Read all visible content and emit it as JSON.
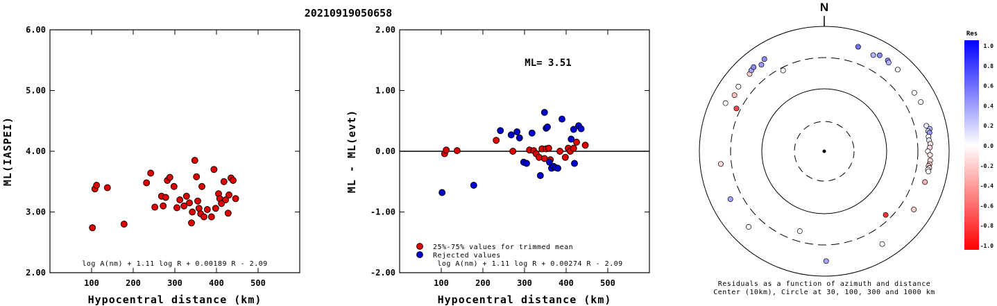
{
  "event_id": "20210919050658",
  "chart_data": [
    {
      "type": "scatter",
      "title": "",
      "xlabel": "Hypocentral distance (km)",
      "ylabel": "ML(IASPEI)",
      "xlim": [
        0,
        600
      ],
      "ylim": [
        2.0,
        6.0
      ],
      "x_ticks": [
        "100",
        "200",
        "300",
        "400",
        "500"
      ],
      "y_ticks": [
        "2.00",
        "3.00",
        "4.00",
        "5.00",
        "6.00"
      ],
      "formula": "log A(nm) + 1.11 log R + 0.00189 R - 2.09",
      "marker_color": "#dd0000",
      "points": [
        {
          "x": 102,
          "y": 2.74
        },
        {
          "x": 108,
          "y": 3.38
        },
        {
          "x": 112,
          "y": 3.44
        },
        {
          "x": 138,
          "y": 3.4
        },
        {
          "x": 178,
          "y": 2.8
        },
        {
          "x": 232,
          "y": 3.48
        },
        {
          "x": 242,
          "y": 3.64
        },
        {
          "x": 252,
          "y": 3.08
        },
        {
          "x": 268,
          "y": 3.26
        },
        {
          "x": 272,
          "y": 3.1
        },
        {
          "x": 278,
          "y": 3.24
        },
        {
          "x": 282,
          "y": 3.52
        },
        {
          "x": 288,
          "y": 3.57
        },
        {
          "x": 298,
          "y": 3.42
        },
        {
          "x": 305,
          "y": 3.07
        },
        {
          "x": 312,
          "y": 3.2
        },
        {
          "x": 322,
          "y": 3.1
        },
        {
          "x": 328,
          "y": 3.26
        },
        {
          "x": 335,
          "y": 3.15
        },
        {
          "x": 340,
          "y": 2.82
        },
        {
          "x": 342,
          "y": 3.0
        },
        {
          "x": 348,
          "y": 3.85
        },
        {
          "x": 352,
          "y": 3.58
        },
        {
          "x": 355,
          "y": 3.18
        },
        {
          "x": 358,
          "y": 3.06
        },
        {
          "x": 362,
          "y": 2.97
        },
        {
          "x": 365,
          "y": 3.42
        },
        {
          "x": 370,
          "y": 2.92
        },
        {
          "x": 378,
          "y": 3.04
        },
        {
          "x": 388,
          "y": 2.92
        },
        {
          "x": 394,
          "y": 3.7
        },
        {
          "x": 398,
          "y": 3.06
        },
        {
          "x": 405,
          "y": 3.3
        },
        {
          "x": 408,
          "y": 3.22
        },
        {
          "x": 412,
          "y": 3.14
        },
        {
          "x": 418,
          "y": 3.5
        },
        {
          "x": 422,
          "y": 3.2
        },
        {
          "x": 428,
          "y": 2.98
        },
        {
          "x": 430,
          "y": 3.28
        },
        {
          "x": 435,
          "y": 3.56
        },
        {
          "x": 440,
          "y": 3.52
        },
        {
          "x": 446,
          "y": 3.22
        }
      ]
    },
    {
      "type": "scatter",
      "title": "",
      "xlabel": "Hypocentral distance (km)",
      "ylabel": "ML - ML(evt)",
      "xlim": [
        0,
        600
      ],
      "ylim": [
        -2.0,
        2.0
      ],
      "x_ticks": [
        "100",
        "200",
        "300",
        "400",
        "500"
      ],
      "y_ticks": [
        "-2.00",
        "-1.00",
        "0.00",
        "1.00",
        "2.00"
      ],
      "annotation": "ML= 3.51",
      "formula": "log A(nm) + 1.11 log R + 0.00274 R - 2.09",
      "legend": [
        {
          "label": "25%-75% values for trimmed mean",
          "color": "#dd0000"
        },
        {
          "label": "Rejected values",
          "color": "#0000cc"
        }
      ],
      "series": [
        {
          "color": "#dd0000",
          "points": [
            {
              "x": 108,
              "y": -0.04
            },
            {
              "x": 112,
              "y": 0.02
            },
            {
              "x": 138,
              "y": 0.01
            },
            {
              "x": 232,
              "y": 0.18
            },
            {
              "x": 272,
              "y": 0.0
            },
            {
              "x": 312,
              "y": 0.02
            },
            {
              "x": 322,
              "y": 0.01
            },
            {
              "x": 328,
              "y": -0.04
            },
            {
              "x": 335,
              "y": -0.1
            },
            {
              "x": 342,
              "y": 0.04
            },
            {
              "x": 348,
              "y": -0.12
            },
            {
              "x": 352,
              "y": 0.04
            },
            {
              "x": 358,
              "y": 0.05
            },
            {
              "x": 362,
              "y": -0.14
            },
            {
              "x": 385,
              "y": 0.0
            },
            {
              "x": 398,
              "y": -0.1
            },
            {
              "x": 405,
              "y": 0.05
            },
            {
              "x": 410,
              "y": 0.0
            },
            {
              "x": 418,
              "y": 0.05
            },
            {
              "x": 425,
              "y": 0.15
            },
            {
              "x": 446,
              "y": 0.1
            }
          ]
        },
        {
          "color": "#0000cc",
          "points": [
            {
              "x": 102,
              "y": -0.68
            },
            {
              "x": 178,
              "y": -0.56
            },
            {
              "x": 242,
              "y": 0.34
            },
            {
              "x": 268,
              "y": 0.27
            },
            {
              "x": 282,
              "y": 0.32
            },
            {
              "x": 288,
              "y": 0.22
            },
            {
              "x": 298,
              "y": -0.18
            },
            {
              "x": 305,
              "y": -0.2
            },
            {
              "x": 318,
              "y": 0.3
            },
            {
              "x": 338,
              "y": -0.4
            },
            {
              "x": 348,
              "y": 0.64
            },
            {
              "x": 352,
              "y": 0.38
            },
            {
              "x": 355,
              "y": 0.4
            },
            {
              "x": 360,
              "y": -0.18
            },
            {
              "x": 365,
              "y": -0.28
            },
            {
              "x": 370,
              "y": -0.25
            },
            {
              "x": 375,
              "y": -0.27
            },
            {
              "x": 380,
              "y": -0.28
            },
            {
              "x": 390,
              "y": 0.53
            },
            {
              "x": 412,
              "y": 0.2
            },
            {
              "x": 418,
              "y": 0.36
            },
            {
              "x": 430,
              "y": 0.42
            },
            {
              "x": 436,
              "y": 0.37
            },
            {
              "x": 420,
              "y": -0.2
            }
          ]
        }
      ]
    },
    {
      "type": "scatter",
      "subtype": "polar",
      "north_label": "N",
      "caption_line1": "Residuals as a function of azimuth and distance",
      "caption_line2": "Center (10km), Circle at 30, 100, 300 and 1000 km",
      "colorbar": {
        "title": "Res",
        "range": [
          -1.0,
          1.0
        ],
        "ticks": [
          "1.0",
          "0.8",
          "0.6",
          "0.4",
          "0.2",
          "0.0",
          "-0.2",
          "-0.4",
          "-0.6",
          "-0.8",
          "-1.0"
        ],
        "high_color": "#0000ff",
        "low_color": "#ff0000"
      },
      "rings_km": [
        30,
        100,
        300,
        1000
      ],
      "stations": [
        {
          "az": 18,
          "dist_km": 560,
          "res": 0.55
        },
        {
          "az": 27,
          "dist_km": 520,
          "res": 0.3
        },
        {
          "az": 30,
          "dist_km": 580,
          "res": 0.45
        },
        {
          "az": 35,
          "dist_km": 580,
          "res": 0.45
        },
        {
          "az": 36,
          "dist_km": 555,
          "res": 0.3
        },
        {
          "az": 42,
          "dist_km": 560,
          "res": 0.0
        },
        {
          "az": 57,
          "dist_km": 510,
          "res": 0.0
        },
        {
          "az": 63,
          "dist_km": 530,
          "res": 0.0
        },
        {
          "az": 76,
          "dist_km": 470,
          "res": 0.1
        },
        {
          "az": 78,
          "dist_km": 520,
          "res": 0.3
        },
        {
          "az": 79,
          "dist_km": 480,
          "res": 0.15
        },
        {
          "az": 80,
          "dist_km": 500,
          "res": 0.4
        },
        {
          "az": 82,
          "dist_km": 470,
          "res": 0.0
        },
        {
          "az": 84,
          "dist_km": 470,
          "res": 0.1
        },
        {
          "az": 86,
          "dist_km": 490,
          "res": -0.1
        },
        {
          "az": 88,
          "dist_km": 475,
          "res": -0.15
        },
        {
          "az": 90,
          "dist_km": 440,
          "res": 0.0
        },
        {
          "az": 92,
          "dist_km": 480,
          "res": -0.1
        },
        {
          "az": 95,
          "dist_km": 490,
          "res": -0.15
        },
        {
          "az": 97,
          "dist_km": 485,
          "res": -0.25
        },
        {
          "az": 98,
          "dist_km": 470,
          "res": -0.2
        },
        {
          "az": 99,
          "dist_km": 490,
          "res": -0.1
        },
        {
          "az": 100,
          "dist_km": 470,
          "res": 0.0
        },
        {
          "az": 101,
          "dist_km": 485,
          "res": 0.0
        },
        {
          "az": 107,
          "dist_km": 470,
          "res": -0.3
        },
        {
          "az": 123,
          "dist_km": 500,
          "res": -0.2
        },
        {
          "az": 136,
          "dist_km": 250,
          "res": -0.8
        },
        {
          "az": 148,
          "dist_km": 550,
          "res": 0.0
        },
        {
          "az": 179,
          "dist_km": 560,
          "res": 0.35
        },
        {
          "az": 197,
          "dist_km": 210,
          "res": 0.0
        },
        {
          "az": 225,
          "dist_km": 500,
          "res": 0.0
        },
        {
          "az": 243,
          "dist_km": 470,
          "res": 0.35
        },
        {
          "az": 263,
          "dist_km": 450,
          "res": -0.15
        },
        {
          "az": 296,
          "dist_km": 350,
          "res": -0.7
        },
        {
          "az": 302,
          "dist_km": 480,
          "res": -0.25
        },
        {
          "az": 296,
          "dist_km": 560,
          "res": 0.0
        },
        {
          "az": 307,
          "dist_km": 510,
          "res": 0.0
        },
        {
          "az": 316,
          "dist_km": 510,
          "res": -0.2
        },
        {
          "az": 318,
          "dist_km": 540,
          "res": 0.35
        },
        {
          "az": 320,
          "dist_km": 560,
          "res": 0.45
        },
        {
          "az": 324,
          "dist_km": 500,
          "res": 0.4
        },
        {
          "az": 327,
          "dist_km": 560,
          "res": 0.45
        },
        {
          "az": 333,
          "dist_km": 270,
          "res": 0.0
        }
      ]
    }
  ]
}
